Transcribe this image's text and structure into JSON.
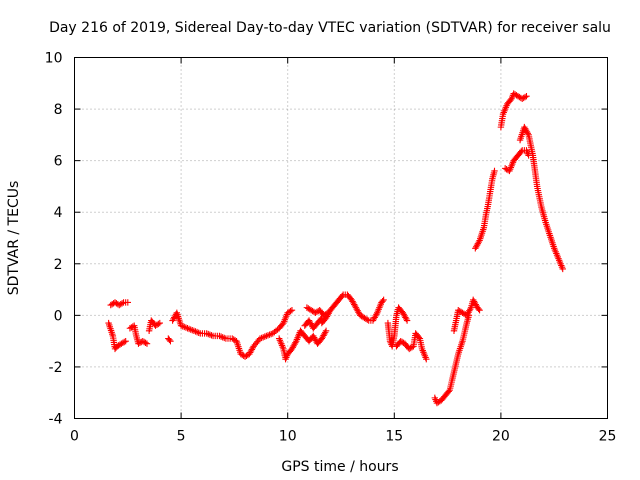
{
  "chart_data": {
    "type": "scatter",
    "title": "Day 216 of 2019, Sidereal Day-to-day VTEC variation (SDTVAR) for receiver salu",
    "xlabel": "GPS time / hours",
    "ylabel": "SDTVAR / TECUs",
    "xlim": [
      0,
      25
    ],
    "ylim": [
      -4,
      10
    ],
    "xticks": [
      "0",
      "5",
      "10",
      "15",
      "20",
      "25"
    ],
    "yticks": [
      "-4",
      "-2",
      "0",
      "2",
      "4",
      "6",
      "8",
      "10"
    ],
    "grid": true,
    "marker": "plus",
    "color": "#ff0000",
    "series": [
      {
        "name": "SDTVAR",
        "segments": [
          [
            [
              1.6,
              -0.3
            ],
            [
              1.8,
              -0.8
            ],
            [
              1.9,
              -1.3
            ],
            [
              2.0,
              -1.2
            ],
            [
              2.2,
              -1.1
            ],
            [
              2.4,
              -1.0
            ]
          ],
          [
            [
              1.7,
              0.4
            ],
            [
              1.9,
              0.5
            ],
            [
              2.1,
              0.4
            ],
            [
              2.3,
              0.5
            ],
            [
              2.5,
              0.5
            ]
          ],
          [
            [
              2.6,
              -0.5
            ],
            [
              2.8,
              -0.4
            ],
            [
              2.9,
              -0.8
            ],
            [
              3.0,
              -1.1
            ],
            [
              3.2,
              -1.0
            ],
            [
              3.4,
              -1.1
            ]
          ],
          [
            [
              3.5,
              -0.6
            ],
            [
              3.6,
              -0.2
            ],
            [
              3.8,
              -0.4
            ],
            [
              4.0,
              -0.3
            ]
          ],
          [
            [
              4.4,
              -0.9
            ],
            [
              4.5,
              -1.0
            ]
          ],
          [
            [
              4.6,
              -0.2
            ],
            [
              4.8,
              0.1
            ],
            [
              5.0,
              -0.4
            ],
            [
              5.3,
              -0.5
            ],
            [
              5.6,
              -0.6
            ],
            [
              5.9,
              -0.7
            ],
            [
              6.2,
              -0.7
            ],
            [
              6.5,
              -0.8
            ],
            [
              6.8,
              -0.8
            ],
            [
              7.1,
              -0.9
            ],
            [
              7.4,
              -0.9
            ],
            [
              7.6,
              -1.0
            ],
            [
              7.8,
              -1.5
            ],
            [
              8.0,
              -1.6
            ],
            [
              8.2,
              -1.5
            ],
            [
              8.4,
              -1.2
            ],
            [
              8.7,
              -0.9
            ],
            [
              9.0,
              -0.8
            ],
            [
              9.3,
              -0.7
            ],
            [
              9.6,
              -0.5
            ],
            [
              9.8,
              -0.3
            ],
            [
              10.0,
              0.1
            ],
            [
              10.2,
              0.2
            ]
          ],
          [
            [
              9.6,
              -0.9
            ],
            [
              9.8,
              -1.3
            ],
            [
              9.9,
              -1.7
            ],
            [
              10.0,
              -1.5
            ],
            [
              10.2,
              -1.3
            ],
            [
              10.4,
              -1.0
            ],
            [
              10.6,
              -0.6
            ],
            [
              10.8,
              -0.8
            ],
            [
              11.0,
              -1.0
            ],
            [
              11.2,
              -0.8
            ],
            [
              11.4,
              -1.1
            ],
            [
              11.6,
              -0.9
            ],
            [
              11.8,
              -0.6
            ]
          ],
          [
            [
              10.8,
              -0.4
            ],
            [
              11.0,
              -0.2
            ],
            [
              11.2,
              -0.5
            ],
            [
              11.4,
              -0.3
            ],
            [
              11.6,
              -0.1
            ]
          ],
          [
            [
              10.9,
              0.3
            ],
            [
              11.1,
              0.2
            ],
            [
              11.3,
              0.1
            ],
            [
              11.5,
              0.2
            ],
            [
              11.7,
              0.0
            ],
            [
              11.9,
              0.1
            ]
          ],
          [
            [
              11.6,
              -0.3
            ],
            [
              11.8,
              -0.1
            ],
            [
              12.0,
              0.2
            ],
            [
              12.2,
              0.4
            ],
            [
              12.4,
              0.6
            ],
            [
              12.6,
              0.8
            ],
            [
              12.8,
              0.8
            ],
            [
              13.0,
              0.6
            ],
            [
              13.2,
              0.3
            ],
            [
              13.4,
              0.0
            ],
            [
              13.6,
              -0.1
            ],
            [
              13.8,
              -0.2
            ],
            [
              14.0,
              -0.2
            ],
            [
              14.2,
              0.1
            ],
            [
              14.4,
              0.5
            ],
            [
              14.5,
              0.6
            ]
          ],
          [
            [
              14.7,
              -0.3
            ],
            [
              14.8,
              -1.0
            ],
            [
              14.9,
              -1.2
            ],
            [
              15.0,
              -0.8
            ],
            [
              15.1,
              0.0
            ],
            [
              15.2,
              0.3
            ],
            [
              15.4,
              0.1
            ],
            [
              15.6,
              -0.2
            ]
          ],
          [
            [
              15.1,
              -1.2
            ],
            [
              15.3,
              -1.0
            ],
            [
              15.5,
              -1.1
            ],
            [
              15.7,
              -1.3
            ],
            [
              15.9,
              -1.2
            ],
            [
              16.0,
              -0.7
            ],
            [
              16.2,
              -0.9
            ],
            [
              16.3,
              -1.3
            ],
            [
              16.5,
              -1.7
            ]
          ],
          [
            [
              16.9,
              -3.2
            ],
            [
              17.0,
              -3.4
            ],
            [
              17.2,
              -3.3
            ],
            [
              17.4,
              -3.1
            ],
            [
              17.6,
              -2.9
            ],
            [
              17.8,
              -2.2
            ],
            [
              18.0,
              -1.5
            ],
            [
              18.2,
              -1.0
            ],
            [
              18.4,
              -0.3
            ],
            [
              18.5,
              0.0
            ]
          ],
          [
            [
              17.8,
              -0.6
            ],
            [
              17.9,
              -0.2
            ],
            [
              18.0,
              0.2
            ],
            [
              18.2,
              0.1
            ],
            [
              18.4,
              0.0
            ],
            [
              18.6,
              0.3
            ],
            [
              18.7,
              0.6
            ],
            [
              18.9,
              0.3
            ],
            [
              19.0,
              0.2
            ]
          ],
          [
            [
              18.8,
              2.6
            ],
            [
              19.0,
              2.9
            ],
            [
              19.2,
              3.4
            ],
            [
              19.3,
              3.9
            ],
            [
              19.4,
              4.3
            ],
            [
              19.5,
              4.8
            ],
            [
              19.6,
              5.3
            ],
            [
              19.7,
              5.6
            ]
          ],
          [
            [
              20.0,
              7.3
            ],
            [
              20.1,
              7.8
            ],
            [
              20.3,
              8.2
            ],
            [
              20.5,
              8.4
            ],
            [
              20.6,
              8.6
            ],
            [
              20.8,
              8.5
            ],
            [
              21.0,
              8.4
            ],
            [
              21.2,
              8.5
            ]
          ],
          [
            [
              20.2,
              5.7
            ],
            [
              20.4,
              5.6
            ],
            [
              20.5,
              5.8
            ],
            [
              20.6,
              6.0
            ],
            [
              20.8,
              6.2
            ],
            [
              21.0,
              6.4
            ],
            [
              21.2,
              6.4
            ],
            [
              21.3,
              6.2
            ]
          ],
          [
            [
              20.9,
              6.8
            ],
            [
              21.1,
              7.3
            ],
            [
              21.3,
              7.0
            ],
            [
              21.5,
              6.2
            ],
            [
              21.7,
              5.0
            ],
            [
              21.9,
              4.2
            ],
            [
              22.1,
              3.6
            ],
            [
              22.3,
              3.1
            ],
            [
              22.5,
              2.6
            ],
            [
              22.7,
              2.2
            ],
            [
              22.9,
              1.8
            ]
          ]
        ]
      }
    ]
  }
}
